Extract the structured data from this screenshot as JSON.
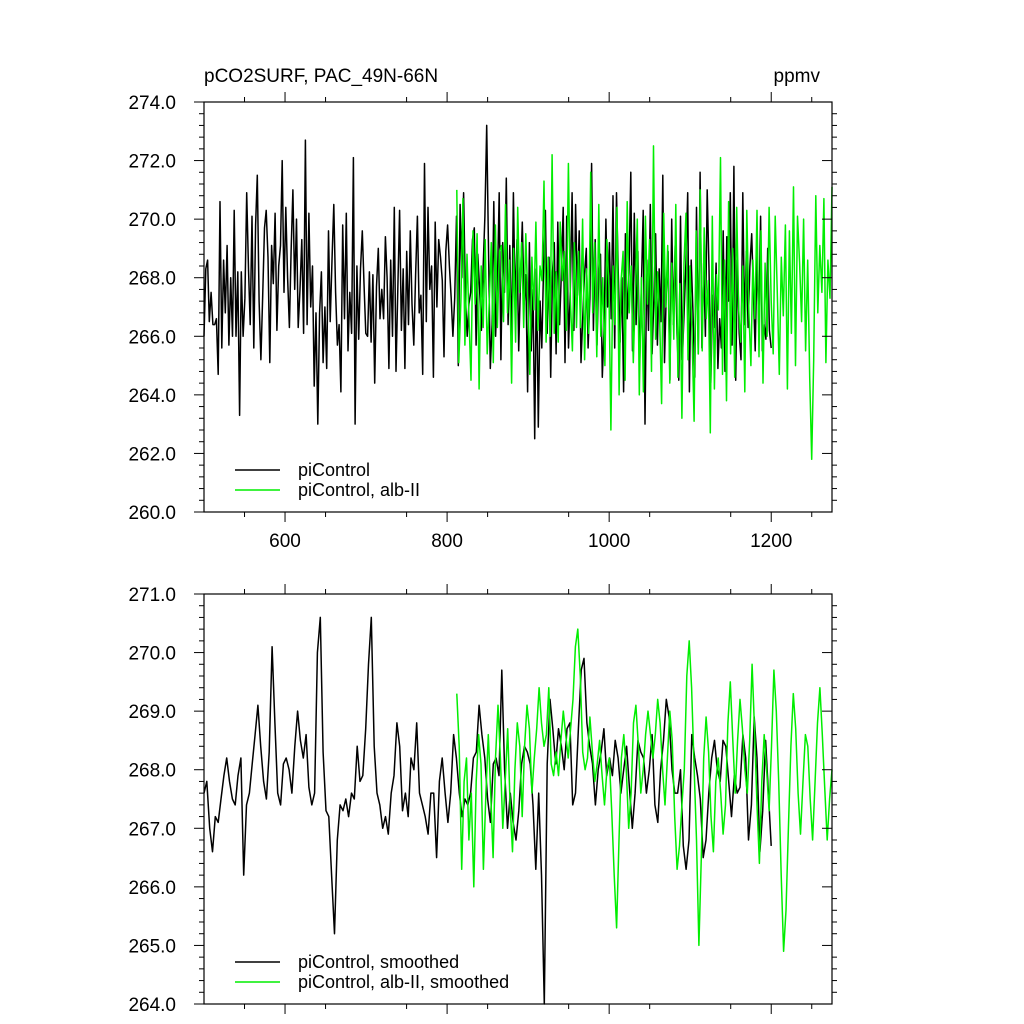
{
  "header": {
    "title_left": "pCO2SURF, PAC_49N-66N",
    "title_right": "ppmv"
  },
  "colors": {
    "pi_control": "#000000",
    "alb_ii": "#00ee00",
    "axes": "#000000",
    "background": "#ffffff"
  },
  "chart_data": [
    {
      "type": "line",
      "xlim": [
        500,
        1275
      ],
      "ylim": [
        260.0,
        274.0
      ],
      "xticks": [
        600,
        800,
        1000,
        1200
      ],
      "xtick_labels": [
        "600",
        "800",
        "1000",
        "1200"
      ],
      "yticks": [
        260.0,
        262.0,
        264.0,
        266.0,
        268.0,
        270.0,
        272.0,
        274.0
      ],
      "ytick_labels": [
        "260.0",
        "262.0",
        "264.0",
        "266.0",
        "268.0",
        "270.0",
        "272.0",
        "274.0"
      ],
      "grid": false,
      "legend_position": "bottom-left",
      "series": [
        {
          "name": "piControl",
          "color": "#000000",
          "x_start": 500,
          "x_end": 1200,
          "values": [
            266.0,
            268.3,
            268.6,
            266.5,
            267.5,
            266.4,
            266.4,
            266.6,
            264.7,
            270.6,
            265.6,
            268.6,
            266.8,
            269.1,
            265.7,
            268.0,
            266.0,
            270.3,
            266.0,
            268.2,
            263.3,
            268.2,
            266.0,
            267.3,
            270.9,
            268.3,
            266.4,
            270.1,
            265.6,
            269.8,
            271.5,
            267.2,
            265.2,
            267.4,
            269.7,
            270.3,
            268.7,
            265.1,
            269.1,
            267.8,
            270.2,
            266.2,
            268.4,
            269.1,
            272.0,
            267.5,
            270.4,
            268.0,
            266.3,
            268.9,
            271.0,
            267.6,
            270.0,
            266.3,
            267.6,
            269.3,
            266.1,
            272.7,
            266.4,
            270.2,
            267.0,
            268.4,
            264.3,
            266.8,
            263.0,
            266.8,
            268.2,
            265.1,
            267.0,
            264.9,
            269.6,
            266.5,
            268.6,
            270.5,
            267.5,
            265.7,
            266.4,
            264.1,
            269.8,
            266.6,
            270.2,
            265.5,
            267.5,
            266.1,
            272.1,
            263.0,
            268.4,
            265.9,
            268.3,
            269.6,
            267.8,
            266.1,
            266.0,
            268.2,
            265.8,
            268.1,
            264.4,
            267.7,
            269.0,
            266.6,
            267.6,
            266.6,
            269.4,
            268.0,
            264.9,
            268.6,
            266.0,
            270.4,
            264.8,
            267.6,
            270.3,
            266.2,
            268.3,
            264.9,
            268.9,
            266.4,
            269.6,
            267.1,
            265.7,
            268.1,
            270.1,
            266.8,
            267.4,
            264.7,
            271.9,
            266.5,
            270.4,
            267.6,
            268.4,
            264.6,
            269.9,
            267.0,
            269.3,
            268.7,
            267.9,
            265.3,
            268.9,
            269.8,
            268.4,
            267.3,
            266.0,
            267.3,
            270.1,
            265.0,
            270.5,
            268.0,
            270.9,
            267.4,
            266.0,
            267.1,
            267.5,
            269.3,
            269.7,
            265.7,
            268.8,
            267.6,
            266.2,
            268.4,
            270.1,
            273.2,
            269.0,
            264.9,
            266.4,
            270.6,
            266.0,
            267.8,
            270.9,
            265.2,
            269.2,
            267.5,
            271.4,
            266.4,
            269.1,
            265.6,
            270.9,
            267.0,
            269.3,
            265.5,
            267.9,
            269.9,
            267.1,
            268.1,
            264.1,
            269.2,
            265.5,
            267.6,
            262.5,
            268.3,
            262.9,
            267.2,
            265.6,
            268.4,
            270.3,
            266.1,
            268.7,
            264.6,
            268.2,
            269.2,
            265.4,
            269.9,
            266.4,
            268.2,
            270.4,
            265.1,
            270.1,
            265.6,
            267.6,
            270.9,
            266.2,
            270.5,
            267.4,
            269.6,
            265.1,
            266.6,
            268.1,
            269.0,
            265.6,
            267.3,
            271.9,
            266.2,
            269.3,
            265.7,
            268.1,
            268.8,
            264.6,
            266.3,
            270.0,
            267.0,
            269.2,
            266.6,
            270.8,
            265.6,
            270.9,
            268.1,
            265.8,
            268.0,
            264.1,
            269.5,
            266.6,
            268.2,
            271.6,
            265.5,
            270.2,
            266.4,
            268.9,
            265.0,
            267.7,
            270.3,
            263.0,
            268.6,
            266.2,
            270.5,
            265.4,
            267.3,
            269.5,
            265.7,
            268.3,
            266.5,
            271.5,
            265.1,
            267.5,
            268.9,
            264.5,
            270.0,
            266.4,
            269.1,
            266.1,
            264.5,
            270.1,
            265.2,
            266.8,
            268.5,
            270.9,
            264.1,
            268.6,
            266.8,
            264.6,
            270.4,
            265.4,
            271.6,
            265.6,
            268.5,
            266.0,
            271.0,
            268.3,
            264.4,
            267.4,
            266.3,
            268.5,
            264.9,
            266.6,
            265.6,
            269.6,
            264.8,
            269.4,
            267.2,
            270.9,
            265.7,
            271.8,
            264.5,
            268.6,
            266.1,
            265.2,
            270.9,
            266.4,
            268.9,
            266.3,
            268.4,
            269.5,
            267.5,
            265.5,
            268.8,
            266.3,
            270.1,
            265.5,
            266.4,
            265.9,
            269.0,
            266.2,
            265.6
          ]
        },
        {
          "name": "piControl, alb-II",
          "color": "#00ee00",
          "x_start": 812,
          "x_end": 1275,
          "values": [
            271.0,
            265.1,
            267.2,
            270.7,
            265.7,
            268.8,
            266.6,
            264.5,
            269.6,
            267.1,
            269.5,
            264.2,
            268.4,
            266.3,
            269.3,
            265.4,
            267.2,
            269.2,
            265.1,
            269.8,
            266.3,
            268.9,
            269.1,
            266.5,
            270.5,
            266.8,
            268.6,
            264.4,
            269.0,
            265.8,
            270.4,
            267.5,
            269.2,
            266.3,
            269.5,
            267.2,
            264.7,
            268.7,
            266.9,
            269.9,
            266.2,
            268.4,
            267.9,
            271.3,
            265.8,
            268.7,
            266.0,
            272.2,
            266.1,
            268.2,
            265.8,
            269.9,
            267.9,
            268.9,
            266.2,
            271.9,
            267.2,
            265.5,
            269.2,
            266.3,
            268.9,
            266.3,
            270.0,
            265.2,
            268.3,
            266.1,
            271.6,
            266.8,
            269.2,
            265.3,
            270.5,
            266.0,
            268.0,
            265.0,
            269.3,
            267.7,
            262.8,
            268.4,
            266.4,
            270.4,
            264.0,
            267.9,
            268.9,
            264.5,
            270.6,
            266.8,
            268.4,
            265.1,
            267.5,
            270.0,
            264.0,
            268.0,
            264.1,
            270.1,
            267.1,
            269.3,
            264.8,
            272.5,
            265.9,
            268.2,
            266.7,
            263.7,
            270.2,
            267.0,
            269.1,
            264.4,
            268.5,
            265.9,
            270.5,
            264.6,
            267.8,
            263.2,
            268.5,
            270.2,
            265.2,
            268.4,
            266.0,
            263.1,
            269.6,
            265.4,
            271.0,
            265.5,
            269.7,
            266.6,
            267.9,
            262.7,
            270.1,
            264.2,
            268.1,
            266.9,
            272.1,
            264.7,
            268.6,
            263.8,
            270.6,
            265.4,
            269.0,
            264.6,
            270.4,
            266.9,
            265.8,
            268.4,
            264.1,
            270.3,
            266.8,
            265.0,
            268.6,
            266.6,
            270.3,
            265.3,
            269.6,
            264.4,
            268.5,
            266.0,
            270.4,
            267.2,
            265.4,
            270.1,
            267.6,
            264.7,
            268.7,
            266.7,
            269.8,
            264.2,
            269.6,
            266.1,
            271.1,
            265.0,
            270.1,
            268.5,
            266.5,
            270.0,
            265.5,
            268.6,
            264.6,
            261.8,
            265.2,
            270.8,
            266.8,
            269.1,
            267.5,
            270.7,
            265.1,
            268.6,
            267.3,
            271.1
          ]
        }
      ]
    },
    {
      "type": "line",
      "xlim": [
        500,
        1275
      ],
      "ylim": [
        264.0,
        271.0
      ],
      "xticks": [
        600,
        800,
        1000,
        1200
      ],
      "yticks": [
        264.0,
        265.0,
        266.0,
        267.0,
        268.0,
        269.0,
        270.0,
        271.0
      ],
      "ytick_labels": [
        "264.0",
        "265.0",
        "266.0",
        "267.0",
        "268.0",
        "269.0",
        "270.0",
        "271.0"
      ],
      "grid": false,
      "legend_position": "bottom-left",
      "series": [
        {
          "name": "piControl, smoothed",
          "color": "#000000",
          "x_start": 500,
          "x_end": 1200,
          "values": [
            267.6,
            267.8,
            267.0,
            266.6,
            267.2,
            267.1,
            267.5,
            267.9,
            268.2,
            267.8,
            267.5,
            267.4,
            267.9,
            268.2,
            266.2,
            267.4,
            267.6,
            268.1,
            268.6,
            269.1,
            268.4,
            267.8,
            267.5,
            268.3,
            270.1,
            268.8,
            267.6,
            267.4,
            268.1,
            268.2,
            268.0,
            267.6,
            268.4,
            269.0,
            268.5,
            268.2,
            268.6,
            267.7,
            267.4,
            267.6,
            270.0,
            270.6,
            268.3,
            267.3,
            267.2,
            266.2,
            265.2,
            266.8,
            267.4,
            267.3,
            267.5,
            267.2,
            267.6,
            267.5,
            268.4,
            267.8,
            267.9,
            268.7,
            269.8,
            270.6,
            268.4,
            267.6,
            267.4,
            267.0,
            267.2,
            266.9,
            267.6,
            267.9,
            268.8,
            268.4,
            267.3,
            267.6,
            267.2,
            268.2,
            268.0,
            268.8,
            267.6,
            267.4,
            267.2,
            266.9,
            267.6,
            267.6,
            266.5,
            267.8,
            268.2,
            267.6,
            267.1,
            267.6,
            268.6,
            268.2,
            267.6,
            267.2,
            267.5,
            267.4,
            267.6,
            268.2,
            268.3,
            269.1,
            268.6,
            268.2,
            267.5,
            267.1,
            268.1,
            268.2,
            267.9,
            269.7,
            268.0,
            267.0,
            267.6,
            267.1,
            266.8,
            267.3,
            268.1,
            268.4,
            268.3,
            268.1,
            267.4,
            266.3,
            267.6,
            266.2,
            264.0,
            268.1,
            269.2,
            268.7,
            268.1,
            268.7,
            268.4,
            268.0,
            268.7,
            268.8,
            267.4,
            267.6,
            268.7,
            269.7,
            269.9,
            268.8,
            268.4,
            268.1,
            267.4,
            268.0,
            268.3,
            268.7,
            267.9,
            268.2,
            267.9,
            268.5,
            268.2,
            267.6,
            268.0,
            268.4,
            267.7,
            267.0,
            267.6,
            268.5,
            268.3,
            268.2,
            267.6,
            268.0,
            268.6,
            267.4,
            267.1,
            268.0,
            268.5,
            269.2,
            268.9,
            268.0,
            267.6,
            267.6,
            268.0,
            266.7,
            266.3,
            266.8,
            268.6,
            268.2,
            267.9,
            267.5,
            266.5,
            266.8,
            267.6,
            268.2,
            268.5,
            268.0,
            267.8,
            268.5,
            268.4,
            267.8,
            267.2,
            267.9,
            267.6,
            267.7,
            268.6,
            268.2,
            266.8,
            267.4,
            268.9,
            268.2,
            266.6,
            267.3,
            268.5,
            267.6,
            266.7
          ]
        },
        {
          "name": "piControl, alb-II, smoothed",
          "color": "#00ee00",
          "x_start": 812,
          "x_end": 1275,
          "values": [
            269.3,
            268.4,
            266.3,
            267.8,
            268.2,
            266.8,
            267.6,
            266.0,
            267.8,
            268.6,
            268.1,
            266.3,
            267.6,
            268.6,
            267.6,
            266.5,
            268.2,
            269.1,
            268.2,
            267.0,
            267.8,
            268.7,
            267.4,
            266.6,
            268.0,
            268.8,
            268.4,
            267.2,
            268.4,
            269.1,
            268.7,
            267.6,
            268.2,
            268.7,
            269.4,
            268.8,
            268.4,
            268.6,
            269.4,
            268.1,
            267.9,
            268.3,
            267.9,
            268.5,
            269.0,
            268.6,
            268.2,
            268.7,
            269.2,
            270.1,
            270.4,
            269.6,
            268.3,
            268.0,
            268.2,
            268.9,
            268.3,
            267.8,
            268.1,
            268.5,
            267.9,
            267.4,
            268.0,
            268.2,
            267.3,
            266.2,
            265.3,
            266.8,
            268.2,
            268.6,
            268.0,
            267.0,
            267.6,
            268.8,
            269.1,
            268.4,
            267.6,
            268.0,
            268.6,
            269.0,
            268.6,
            268.2,
            268.6,
            269.2,
            268.8,
            268.0,
            267.4,
            268.2,
            269.0,
            268.5,
            267.2,
            266.3,
            266.7,
            267.4,
            268.0,
            269.6,
            270.2,
            269.4,
            268.1,
            266.8,
            265.0,
            266.5,
            268.2,
            268.9,
            268.3,
            267.2,
            266.6,
            267.8,
            268.2,
            267.6,
            266.9,
            267.4,
            268.8,
            269.5,
            268.5,
            267.6,
            268.5,
            269.2,
            268.7,
            268.0,
            267.6,
            268.5,
            269.8,
            268.7,
            267.4,
            266.4,
            267.8,
            268.6,
            268.0,
            267.3,
            268.4,
            269.7,
            269.0,
            267.8,
            266.2,
            264.9,
            265.6,
            267.0,
            268.4,
            269.3,
            268.7,
            267.6,
            266.9,
            267.8,
            268.6,
            268.4,
            267.5,
            266.8,
            267.8,
            268.8,
            269.4,
            268.6,
            267.7,
            266.8,
            267.5,
            268.0
          ]
        }
      ]
    }
  ]
}
